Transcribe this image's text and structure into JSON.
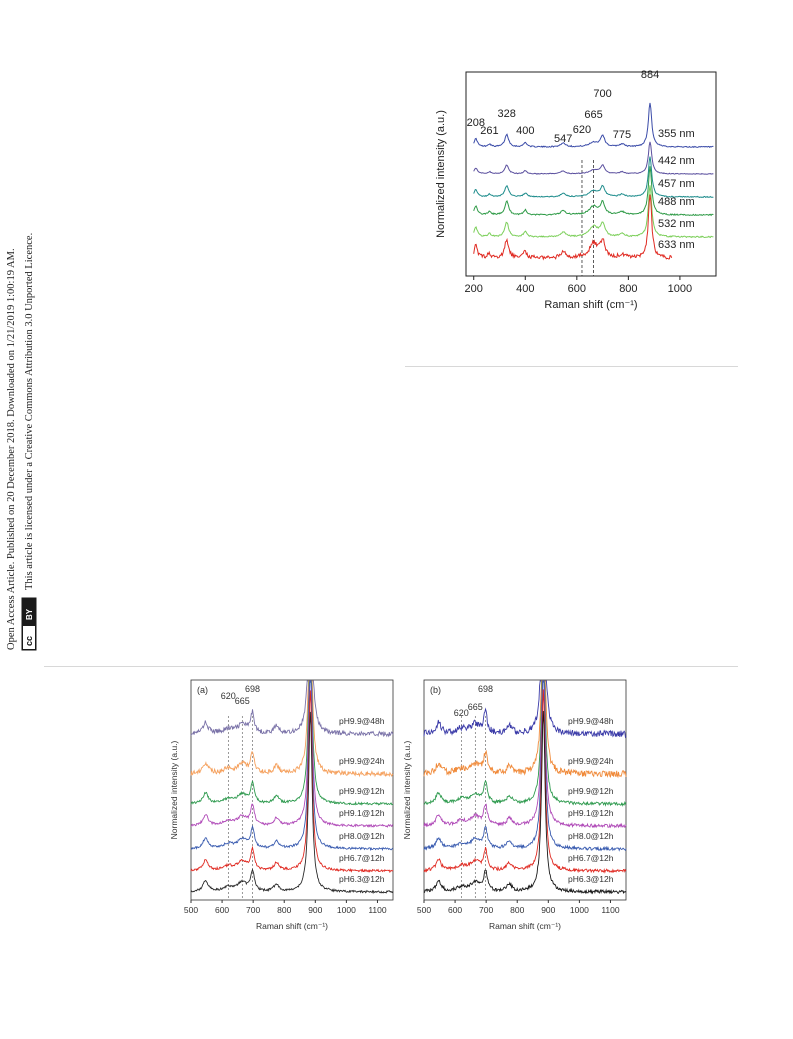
{
  "sidebar": {
    "line1": "Open Access Article. Published on 20 December 2018. Downloaded on 1/21/2019 1:00:19 AM.",
    "line2": "This article is licensed under a Creative Commons Attribution 3.0 Unported Licence.",
    "cc_badge": "cc",
    "by_badge": "BY"
  },
  "chart_data": [
    {
      "type": "line",
      "title": "",
      "xlabel": "Raman shift (cm⁻¹)",
      "ylabel": "Normalized intensity (a.u.)",
      "xlim": [
        170,
        1140
      ],
      "xticks": [
        200,
        400,
        600,
        800,
        1000
      ],
      "series": [
        {
          "name": "355 nm",
          "color": "#3a4ba8"
        },
        {
          "name": "442 nm",
          "color": "#5a4f9e"
        },
        {
          "name": "457 nm",
          "color": "#1e8c8c"
        },
        {
          "name": "488 nm",
          "color": "#2e9a46"
        },
        {
          "name": "532 nm",
          "color": "#7ccf5a"
        },
        {
          "name": "633 nm",
          "color": "#e02a22"
        }
      ],
      "peak_labels": [
        "208",
        "261",
        "328",
        "400",
        "547",
        "620",
        "665",
        "700",
        "775",
        "884"
      ],
      "dashed_lines_at": [
        620,
        665
      ]
    },
    {
      "type": "line",
      "panel": "(a)",
      "xlabel": "Raman shift (cm⁻¹)",
      "ylabel": "Normalized intensity (a.u.)",
      "xlim": [
        500,
        1150
      ],
      "xticks": [
        500,
        600,
        700,
        800,
        900,
        1000,
        1100
      ],
      "series": [
        {
          "name": "pH9.9@48h",
          "color": "#7a72a8"
        },
        {
          "name": "pH9.9@24h",
          "color": "#f5a15e"
        },
        {
          "name": "pH9.9@12h",
          "color": "#2e9a4e"
        },
        {
          "name": "pH9.1@12h",
          "color": "#b04ab8"
        },
        {
          "name": "pH8.0@12h",
          "color": "#3a5cb0"
        },
        {
          "name": "pH6.7@12h",
          "color": "#e02a22"
        },
        {
          "name": "pH6.3@12h",
          "color": "#2a2a2a"
        }
      ],
      "peak_labels": [
        "620",
        "665",
        "698"
      ],
      "dashed_lines_at": [
        620,
        665,
        698
      ]
    },
    {
      "type": "line",
      "panel": "(b)",
      "xlabel": "Raman shift (cm⁻¹)",
      "ylabel": "Normalized intensity (a.u.)",
      "xlim": [
        500,
        1150
      ],
      "xticks": [
        500,
        600,
        700,
        800,
        900,
        1000,
        1100
      ],
      "series": [
        {
          "name": "pH9.9@48h",
          "color": "#3a3aa8"
        },
        {
          "name": "pH9.9@24h",
          "color": "#f08a3a"
        },
        {
          "name": "pH9.9@12h",
          "color": "#2e9a4e"
        },
        {
          "name": "pH9.1@12h",
          "color": "#b04ab8"
        },
        {
          "name": "pH8.0@12h",
          "color": "#3a5cb0"
        },
        {
          "name": "pH6.7@12h",
          "color": "#e02a22"
        },
        {
          "name": "pH6.3@12h",
          "color": "#1a1a1a"
        }
      ],
      "peak_labels": [
        "620",
        "665",
        "698"
      ],
      "dashed_lines_at": [
        620,
        665,
        698
      ]
    }
  ]
}
